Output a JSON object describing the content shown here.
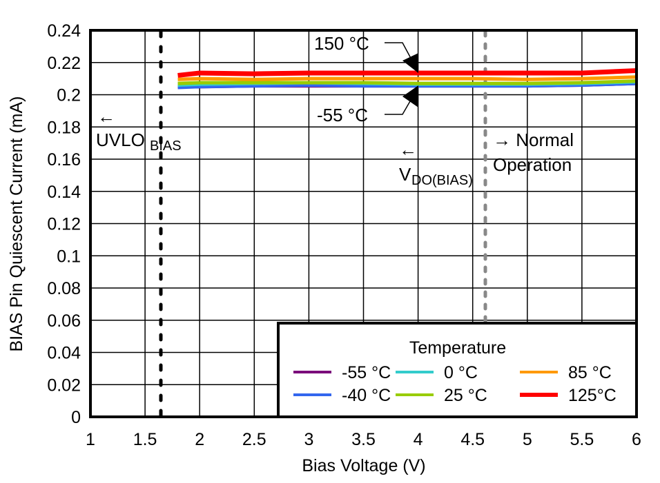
{
  "chart_data": {
    "type": "line",
    "title": "",
    "xlabel": "Bias Voltage (V)",
    "ylabel": "BIAS Pin Quiescent Current (mA)",
    "xlim": [
      1,
      6
    ],
    "ylim": [
      0,
      0.24
    ],
    "xticks": [
      "1",
      "1.5",
      "2",
      "2.5",
      "3",
      "3.5",
      "4",
      "4.5",
      "5",
      "5.5",
      "6"
    ],
    "yticks": [
      "0",
      "0.02",
      "0.04",
      "0.06",
      "0.08",
      "0.1",
      "0.12",
      "0.14",
      "0.16",
      "0.18",
      "0.2",
      "0.22",
      "0.24"
    ],
    "grid": true,
    "legend": {
      "title": "Temperature",
      "position": "lower right",
      "entries": [
        "-55 °C",
        "0 °C",
        "85 °C",
        "-40 °C",
        "25 °C",
        "125°C"
      ]
    },
    "x": [
      1.8,
      2.0,
      2.5,
      3.0,
      3.5,
      4.0,
      4.5,
      5.0,
      5.5,
      6.0
    ],
    "series": [
      {
        "name": "-55 °C",
        "color": "#7B0C7B",
        "values": [
          0.205,
          0.205,
          0.2055,
          0.2055,
          0.2055,
          0.2055,
          0.2055,
          0.2055,
          0.206,
          0.207
        ]
      },
      {
        "name": "-40 °C",
        "color": "#3366EE",
        "values": [
          0.2045,
          0.205,
          0.2055,
          0.206,
          0.2055,
          0.2055,
          0.2055,
          0.2055,
          0.206,
          0.207
        ]
      },
      {
        "name": "0 °C",
        "color": "#33CCCC",
        "values": [
          0.206,
          0.2065,
          0.207,
          0.2075,
          0.207,
          0.2065,
          0.2065,
          0.2065,
          0.207,
          0.208
        ]
      },
      {
        "name": "25 °C",
        "color": "#99CC00",
        "values": [
          0.207,
          0.2075,
          0.2075,
          0.2075,
          0.2075,
          0.207,
          0.207,
          0.207,
          0.2075,
          0.2085
        ]
      },
      {
        "name": "85 °C",
        "color": "#FF9900",
        "values": [
          0.2095,
          0.21,
          0.2095,
          0.21,
          0.21,
          0.21,
          0.21,
          0.2095,
          0.21,
          0.211
        ]
      },
      {
        "name": "125°C",
        "color": "#FF0000",
        "values": [
          0.212,
          0.2135,
          0.213,
          0.2135,
          0.2135,
          0.2135,
          0.2135,
          0.2135,
          0.2135,
          0.215
        ]
      }
    ],
    "annotations": [
      {
        "text": "150 °C",
        "arrow_to": [
          4.0,
          0.214
        ]
      },
      {
        "text": "-55 °C",
        "arrow_to": [
          4.0,
          0.205
        ]
      },
      {
        "text": "← UVLO",
        "sub": "BIAS",
        "vline_x": 1.65,
        "vline_style": "dotted black"
      },
      {
        "text": "← V",
        "sub": "DO(BIAS)"
      },
      {
        "text": "→ Normal Operation",
        "vline_x": 4.62,
        "vline_style": "dashed gray"
      }
    ]
  },
  "labels": {
    "xlabel": "Bias Voltage (V)",
    "ylabel": "BIAS Pin Quiescent Current (mA)",
    "legend_title": "Temperature",
    "ann_150": "150 °C",
    "ann_m55": "-55 °C",
    "uvlo_arrow": "←",
    "uvlo_main": "UVLO",
    "uvlo_sub": "BIAS",
    "vdo_arrow": "←",
    "vdo_main": "V",
    "vdo_sub": "DO(BIAS)",
    "normal_1": "→ Normal",
    "normal_2": "Operation"
  }
}
